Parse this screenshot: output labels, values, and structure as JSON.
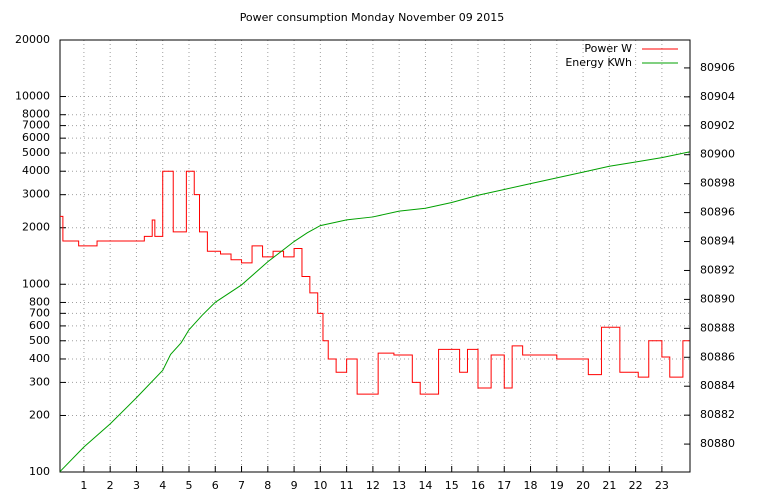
{
  "chart_data": {
    "type": "line",
    "title": "Power consumption Monday November 09 2015",
    "log_y": true,
    "grid": true,
    "legend": "top-right",
    "xlim": [
      0.09,
      24.07
    ],
    "xticks": [
      1,
      2,
      3,
      4,
      5,
      6,
      7,
      8,
      9,
      10,
      11,
      12,
      13,
      14,
      15,
      16,
      17,
      18,
      19,
      20,
      21,
      22,
      23
    ],
    "ylim": [
      100,
      20000
    ],
    "yticks": [
      100,
      200,
      300,
      400,
      500,
      600,
      700,
      800,
      1000,
      2000,
      3000,
      4000,
      5000,
      6000,
      7000,
      8000,
      10000,
      20000
    ],
    "y2lim": [
      80878.07,
      80907.93
    ],
    "y2ticks": [
      80880,
      80882,
      80884,
      80886,
      80888,
      80890,
      80892,
      80894,
      80896,
      80898,
      80900,
      80902,
      80904,
      80906
    ],
    "series": [
      {
        "name": "Power W",
        "color": "#ff0000",
        "x": [
          0.09,
          0.2,
          0.2,
          0.8,
          0.8,
          1.5,
          1.5,
          3.3,
          3.3,
          3.6,
          3.6,
          3.7,
          3.7,
          4.0,
          4.0,
          4.4,
          4.4,
          4.9,
          4.9,
          5.2,
          5.2,
          5.4,
          5.4,
          5.7,
          5.7,
          6.2,
          6.2,
          6.6,
          6.6,
          7.0,
          7.0,
          7.4,
          7.4,
          7.8,
          7.8,
          8.2,
          8.2,
          8.6,
          8.6,
          9.0,
          9.0,
          9.3,
          9.3,
          9.6,
          9.6,
          9.9,
          9.9,
          10.1,
          10.1,
          10.3,
          10.3,
          10.6,
          10.6,
          11.0,
          11.0,
          11.4,
          11.4,
          12.2,
          12.2,
          12.8,
          12.8,
          13.5,
          13.5,
          13.8,
          13.8,
          14.5,
          14.5,
          15.3,
          15.3,
          15.6,
          15.6,
          16.0,
          16.0,
          16.5,
          16.5,
          17.0,
          17.0,
          17.3,
          17.3,
          17.7,
          17.7,
          19.0,
          19.0,
          20.2,
          20.2,
          20.7,
          20.7,
          21.4,
          21.4,
          22.1,
          22.1,
          22.5,
          22.5,
          23.0,
          23.0,
          23.3,
          23.3,
          23.8,
          23.8,
          24.05
        ],
        "values": [
          2300,
          2300,
          1700,
          1700,
          1600,
          1600,
          1700,
          1700,
          1800,
          1800,
          2200,
          2200,
          1800,
          1800,
          4000,
          4000,
          1900,
          1900,
          4000,
          4000,
          3000,
          3000,
          1900,
          1900,
          1500,
          1500,
          1450,
          1450,
          1350,
          1350,
          1300,
          1300,
          1600,
          1600,
          1400,
          1400,
          1500,
          1500,
          1400,
          1400,
          1550,
          1550,
          1100,
          1100,
          900,
          900,
          700,
          700,
          500,
          500,
          400,
          400,
          340,
          340,
          400,
          400,
          260,
          260,
          430,
          430,
          420,
          420,
          300,
          300,
          260,
          260,
          450,
          450,
          340,
          340,
          450,
          450,
          280,
          280,
          420,
          420,
          280,
          280,
          470,
          470,
          420,
          420,
          400,
          400,
          330,
          330,
          590,
          590,
          340,
          340,
          320,
          320,
          500,
          500,
          410,
          410,
          320,
          320,
          500,
          500
        ]
      },
      {
        "name": "Energy KWh",
        "color": "#00a000",
        "axis": "y2",
        "x": [
          0.09,
          1,
          2,
          3,
          4,
          4.3,
          4.7,
          5,
          5.5,
          6,
          7,
          8,
          9,
          9.5,
          10,
          11,
          12,
          13,
          14,
          15,
          16,
          17,
          18,
          19,
          20,
          21,
          22,
          23,
          24.05
        ],
        "values": [
          80878.1,
          80879.8,
          80881.4,
          80883.2,
          80885.1,
          80886.2,
          80887.0,
          80887.9,
          80888.9,
          80889.8,
          80891.0,
          80892.6,
          80894.0,
          80894.6,
          80895.1,
          80895.5,
          80895.7,
          80896.1,
          80896.3,
          80896.7,
          80897.2,
          80897.6,
          80898.0,
          80898.4,
          80898.8,
          80899.2,
          80899.5,
          80899.8,
          80900.2
        ]
      }
    ]
  }
}
